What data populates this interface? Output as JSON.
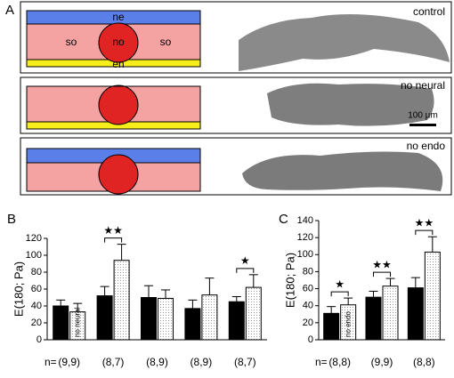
{
  "panel_a": {
    "label": "A",
    "rows": [
      {
        "caption": "control",
        "tissue_labels": [
          "ne",
          "so",
          "no",
          "so",
          "en"
        ]
      },
      {
        "caption": "no neural"
      },
      {
        "caption": "no endo"
      }
    ],
    "scale_bar": "100 µm"
  },
  "chart_data": [
    {
      "type": "bar",
      "panel_label": "B",
      "y_label": "E(180; Pa)",
      "n_label": "n=",
      "categories": [
        "(9,9)",
        "(8,7)",
        "(8,9)",
        "(8,9)",
        "(8,7)"
      ],
      "series": [
        {
          "name": "control",
          "color": "#000000",
          "values": [
            40,
            52,
            50,
            37,
            45
          ],
          "errors": [
            7,
            11,
            14,
            10,
            6
          ]
        },
        {
          "name": "no neural",
          "color": "#ffffff",
          "values": [
            33,
            94,
            49,
            53,
            62
          ],
          "errors": [
            10,
            19,
            10,
            20,
            15
          ]
        }
      ],
      "significance": [
        null,
        "★★",
        null,
        null,
        "★"
      ],
      "ylim": [
        0,
        120
      ],
      "yticks": [
        0,
        20,
        40,
        60,
        80,
        100,
        120
      ]
    },
    {
      "type": "bar",
      "panel_label": "C",
      "y_label": "E(180; Pa)",
      "n_label": "n=",
      "categories": [
        "(8,8)",
        "(9,9)",
        "(8,8)"
      ],
      "series": [
        {
          "name": "control",
          "color": "#000000",
          "values": [
            31,
            50,
            61
          ],
          "errors": [
            8,
            7,
            12
          ]
        },
        {
          "name": "no endo",
          "color": "#ffffff",
          "values": [
            41,
            63,
            103
          ],
          "errors": [
            8,
            9,
            18
          ]
        }
      ],
      "significance": [
        "★",
        "★★",
        "★★"
      ],
      "ylim": [
        0,
        140
      ],
      "yticks": [
        0,
        20,
        40,
        60,
        80,
        100,
        120,
        140
      ]
    }
  ]
}
